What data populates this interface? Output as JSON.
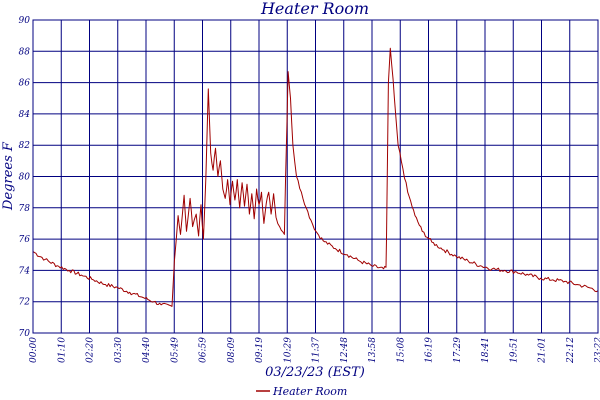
{
  "chart_data": {
    "type": "line",
    "title": "Heater Room",
    "xlabel": "03/23/23 (EST)",
    "ylabel": "Degrees F",
    "ylim": [
      70,
      90
    ],
    "yticks": [
      "70",
      "72",
      "74",
      "76",
      "78",
      "80",
      "82",
      "84",
      "86",
      "88",
      "90"
    ],
    "xticks": [
      "00:00",
      "01:10",
      "02:20",
      "03:30",
      "04:40",
      "05:49",
      "06:59",
      "08:09",
      "09:19",
      "10:29",
      "11:37",
      "12:48",
      "13:58",
      "15:08",
      "16:19",
      "17:29",
      "18:41",
      "19:51",
      "21:01",
      "22:12",
      "23:22"
    ],
    "grid": true,
    "legend_position": "bottom",
    "colors": {
      "line": "#a00000",
      "grid": "#000080",
      "text": "#000080"
    },
    "series": [
      {
        "name": "Heater Room",
        "points": [
          [
            0.0,
            75.2
          ],
          [
            0.5,
            74.7
          ],
          [
            1.0,
            74.3
          ],
          [
            1.5,
            74.0
          ],
          [
            2.0,
            73.7
          ],
          [
            2.5,
            73.4
          ],
          [
            3.0,
            73.1
          ],
          [
            3.5,
            72.9
          ],
          [
            4.0,
            72.6
          ],
          [
            4.5,
            72.3
          ],
          [
            5.0,
            72.0
          ],
          [
            5.3,
            71.8
          ],
          [
            5.75,
            71.7
          ],
          [
            5.85,
            74.6
          ],
          [
            6.0,
            77.5
          ],
          [
            6.1,
            76.3
          ],
          [
            6.25,
            78.8
          ],
          [
            6.35,
            76.5
          ],
          [
            6.5,
            78.6
          ],
          [
            6.6,
            76.8
          ],
          [
            6.75,
            77.6
          ],
          [
            6.85,
            76.2
          ],
          [
            6.95,
            78.2
          ],
          [
            7.05,
            76.0
          ],
          [
            7.15,
            80.0
          ],
          [
            7.25,
            85.6
          ],
          [
            7.35,
            81.5
          ],
          [
            7.45,
            80.4
          ],
          [
            7.55,
            81.8
          ],
          [
            7.65,
            80.0
          ],
          [
            7.75,
            81.0
          ],
          [
            7.85,
            79.2
          ],
          [
            7.95,
            78.6
          ],
          [
            8.05,
            79.8
          ],
          [
            8.15,
            78.2
          ],
          [
            8.25,
            79.7
          ],
          [
            8.35,
            78.5
          ],
          [
            8.45,
            79.8
          ],
          [
            8.55,
            78.0
          ],
          [
            8.65,
            79.6
          ],
          [
            8.75,
            78.1
          ],
          [
            8.85,
            79.5
          ],
          [
            8.95,
            77.6
          ],
          [
            9.05,
            78.9
          ],
          [
            9.15,
            77.3
          ],
          [
            9.25,
            79.2
          ],
          [
            9.35,
            78.2
          ],
          [
            9.45,
            79.0
          ],
          [
            9.55,
            77.0
          ],
          [
            9.65,
            78.3
          ],
          [
            9.75,
            79.0
          ],
          [
            9.85,
            77.6
          ],
          [
            9.95,
            78.9
          ],
          [
            10.05,
            77.4
          ],
          [
            10.2,
            76.8
          ],
          [
            10.4,
            76.3
          ],
          [
            10.45,
            80.0
          ],
          [
            10.55,
            86.7
          ],
          [
            10.65,
            85.0
          ],
          [
            10.75,
            82.0
          ],
          [
            10.9,
            80.0
          ],
          [
            11.1,
            79.0
          ],
          [
            11.3,
            78.0
          ],
          [
            11.5,
            77.2
          ],
          [
            11.7,
            76.5
          ],
          [
            12.0,
            75.9
          ],
          [
            12.5,
            75.4
          ],
          [
            13.0,
            75.0
          ],
          [
            13.5,
            74.6
          ],
          [
            14.0,
            74.3
          ],
          [
            14.5,
            74.1
          ],
          [
            14.6,
            74.2
          ],
          [
            14.62,
            76.0
          ],
          [
            14.7,
            86.0
          ],
          [
            14.78,
            88.2
          ],
          [
            14.95,
            85.0
          ],
          [
            15.1,
            82.0
          ],
          [
            15.3,
            80.5
          ],
          [
            15.5,
            79.0
          ],
          [
            15.8,
            77.5
          ],
          [
            16.1,
            76.5
          ],
          [
            16.5,
            75.8
          ],
          [
            17.0,
            75.3
          ],
          [
            17.5,
            74.9
          ],
          [
            18.0,
            74.6
          ],
          [
            18.5,
            74.3
          ],
          [
            19.0,
            74.1
          ],
          [
            19.5,
            74.0
          ],
          [
            20.0,
            73.9
          ],
          [
            20.5,
            73.7
          ],
          [
            21.0,
            73.5
          ],
          [
            21.5,
            73.4
          ],
          [
            22.0,
            73.3
          ],
          [
            22.5,
            73.1
          ],
          [
            23.0,
            72.9
          ],
          [
            23.37,
            72.7
          ]
        ]
      }
    ]
  }
}
